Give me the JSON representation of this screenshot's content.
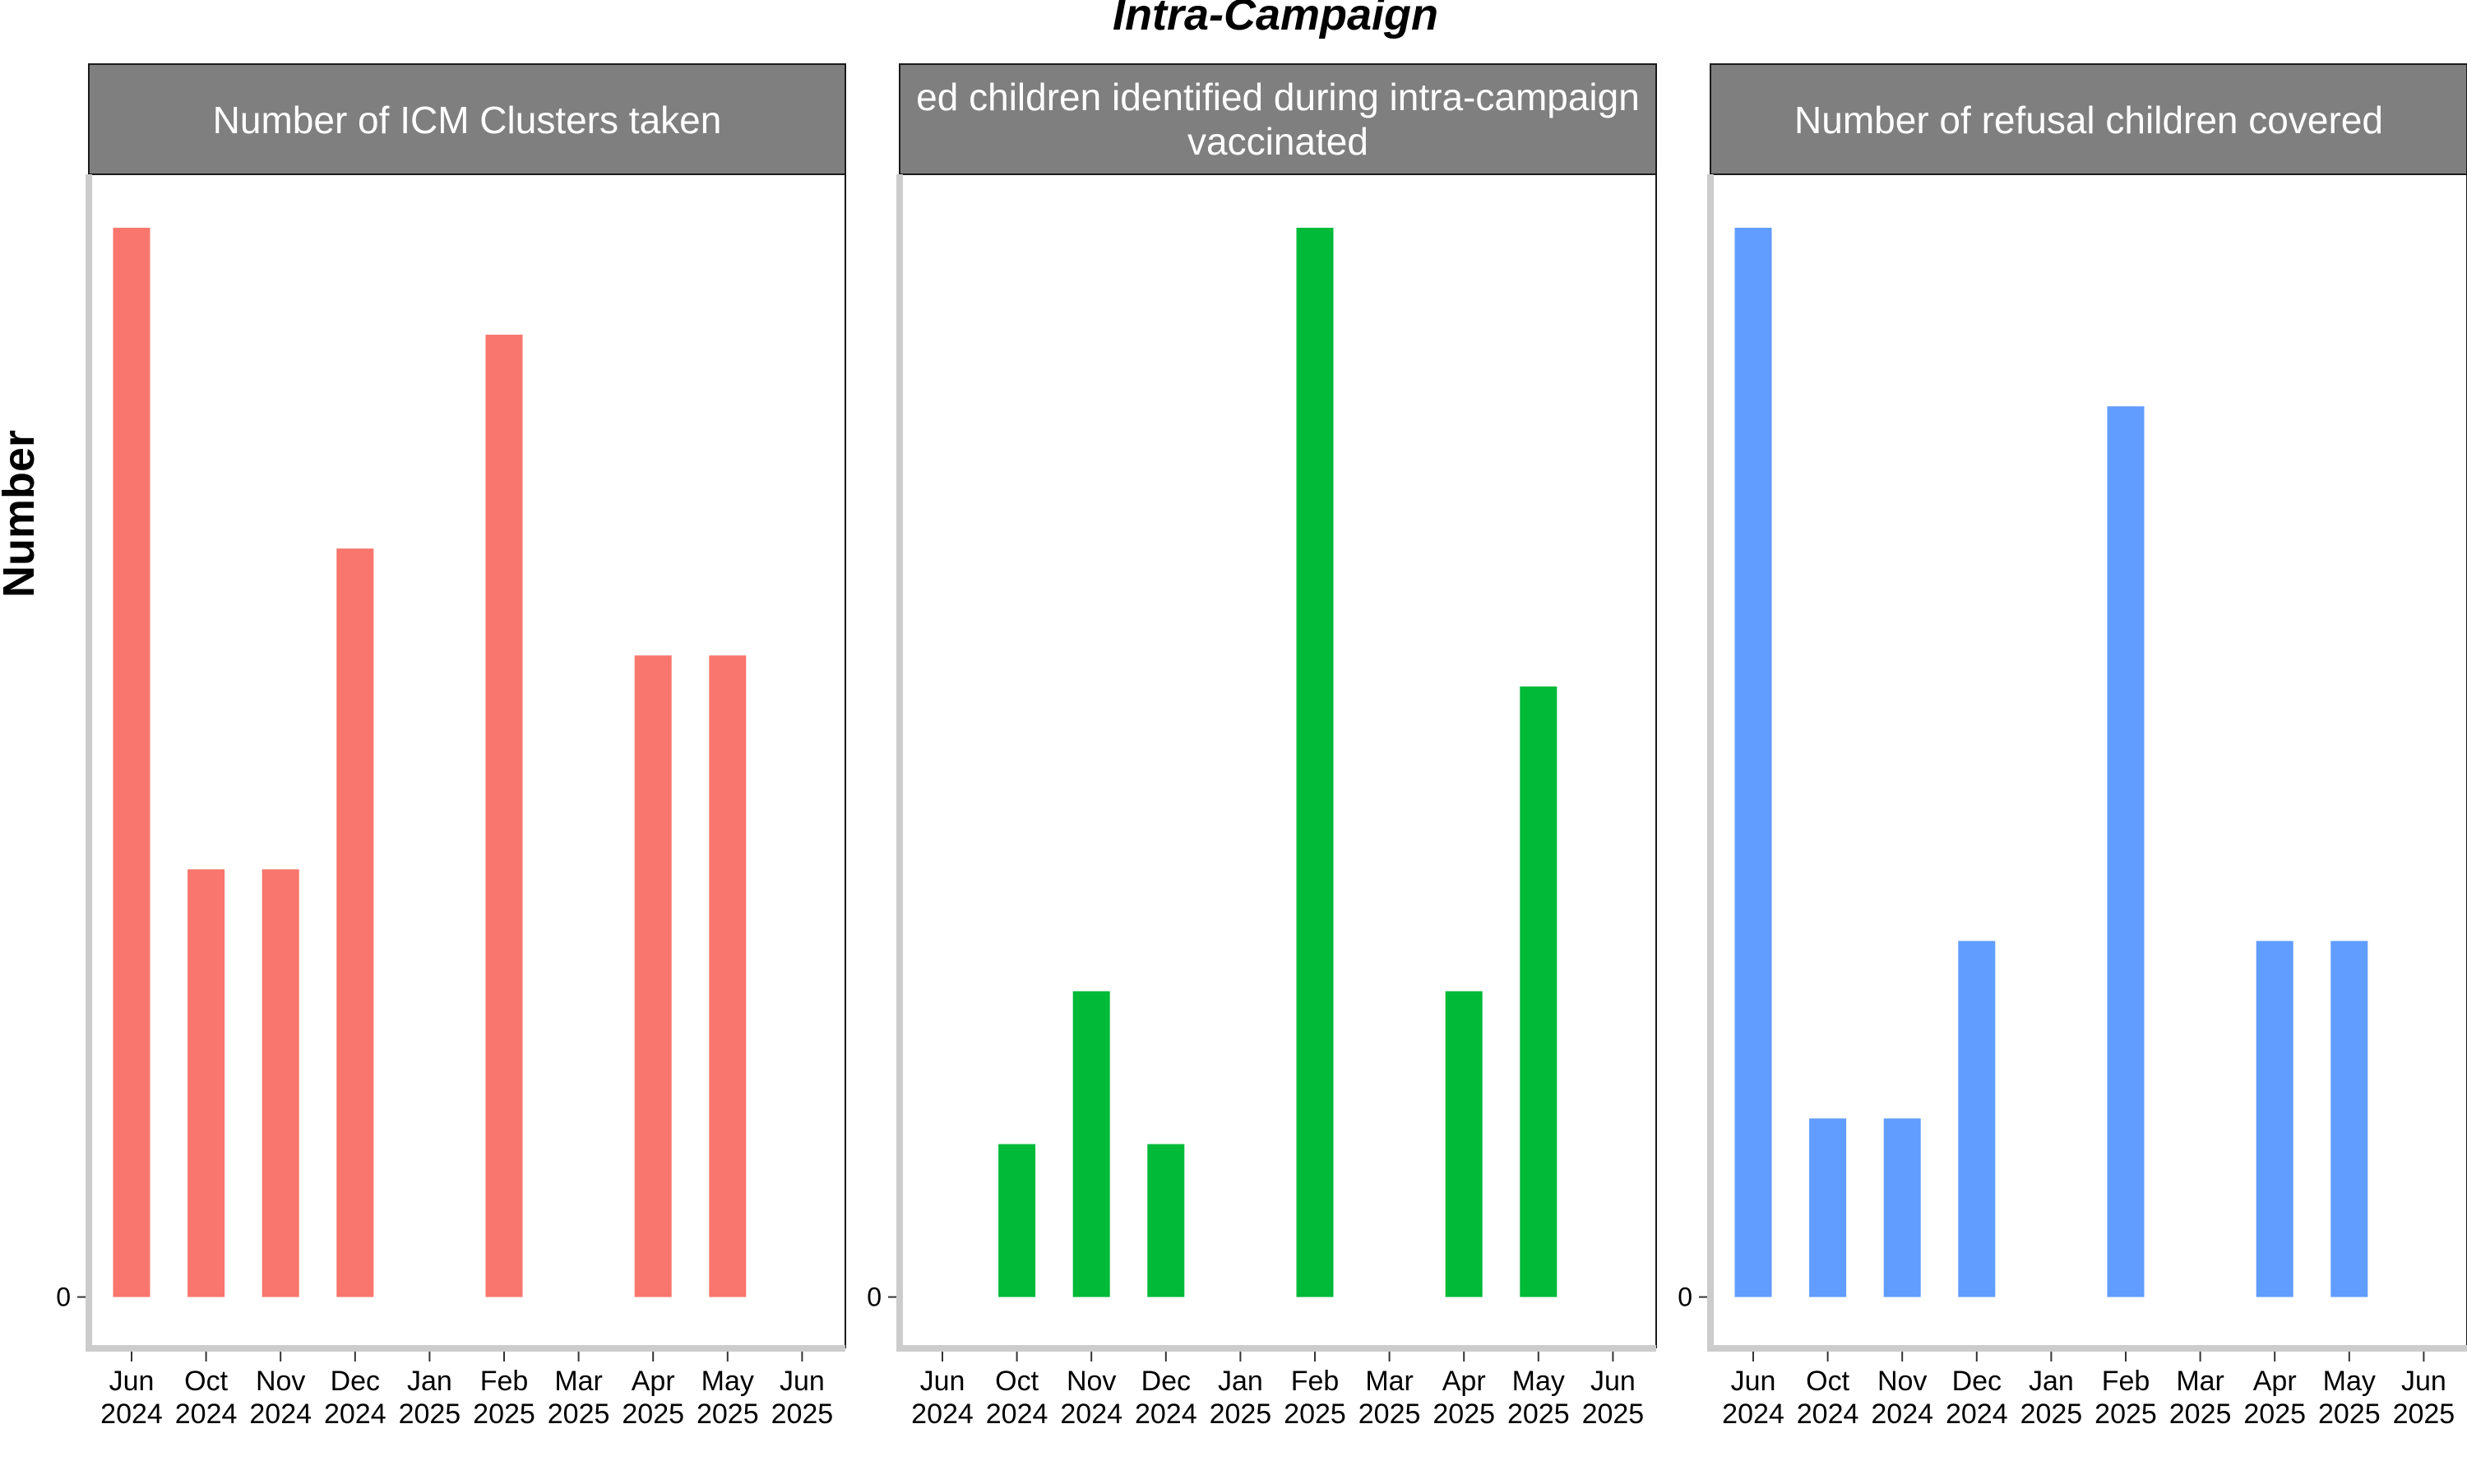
{
  "title": "Intra-Campaign",
  "ylabel": "Number",
  "colors": [
    "#F8766D",
    "#00BA38",
    "#619CFF"
  ],
  "chart_data": [
    {
      "type": "bar",
      "panel_title": "Number of ICM Clusters taken",
      "categories": [
        "Jun 2024",
        "Oct 2024",
        "Nov 2024",
        "Dec 2024",
        "Jan 2025",
        "Feb 2025",
        "Mar 2025",
        "Apr 2025",
        "May 2025",
        "Jun 2025"
      ],
      "tick_labels": [
        [
          "Jun",
          "2024"
        ],
        [
          "Oct",
          "2024"
        ],
        [
          "Nov",
          "2024"
        ],
        [
          "Dec",
          "2024"
        ],
        [
          "Jan",
          "2025"
        ],
        [
          "Feb",
          "2025"
        ],
        [
          "Mar",
          "2025"
        ],
        [
          "Apr",
          "2025"
        ],
        [
          "May",
          "2025"
        ],
        [
          "Jun",
          "2025"
        ]
      ],
      "values": [
        100,
        40,
        40,
        70,
        0,
        90,
        0,
        60,
        60,
        0
      ],
      "ylim": [
        -4.8,
        105
      ],
      "yticks": [
        0
      ]
    },
    {
      "type": "bar",
      "panel_title_lines": [
        "ed children identified during intra-campaign",
        "vaccinated"
      ],
      "categories": [
        "Jun 2024",
        "Oct 2024",
        "Nov 2024",
        "Dec 2024",
        "Jan 2025",
        "Feb 2025",
        "Mar 2025",
        "Apr 2025",
        "May 2025",
        "Jun 2025"
      ],
      "tick_labels": [
        [
          "Jun",
          "2024"
        ],
        [
          "Oct",
          "2024"
        ],
        [
          "Nov",
          "2024"
        ],
        [
          "Dec",
          "2024"
        ],
        [
          "Jan",
          "2025"
        ],
        [
          "Feb",
          "2025"
        ],
        [
          "Mar",
          "2025"
        ],
        [
          "Apr",
          "2025"
        ],
        [
          "May",
          "2025"
        ],
        [
          "Jun",
          "2025"
        ]
      ],
      "values": [
        0,
        14.3,
        28.6,
        14.3,
        0,
        100,
        0,
        28.6,
        57.1,
        0
      ],
      "ylim": [
        -4.8,
        105
      ],
      "yticks": [
        0
      ]
    },
    {
      "type": "bar",
      "panel_title": "Number of refusal children covered",
      "categories": [
        "Jun 2024",
        "Oct 2024",
        "Nov 2024",
        "Dec 2024",
        "Jan 2025",
        "Feb 2025",
        "Mar 2025",
        "Apr 2025",
        "May 2025",
        "Jun 2025"
      ],
      "tick_labels": [
        [
          "Jun",
          "2024"
        ],
        [
          "Oct",
          "2024"
        ],
        [
          "Nov",
          "2024"
        ],
        [
          "Dec",
          "2024"
        ],
        [
          "Jan",
          "2025"
        ],
        [
          "Feb",
          "2025"
        ],
        [
          "Mar",
          "2025"
        ],
        [
          "Apr",
          "2025"
        ],
        [
          "May",
          "2025"
        ],
        [
          "Jun",
          "2025"
        ]
      ],
      "values": [
        100,
        16.7,
        16.7,
        33.3,
        0,
        83.3,
        0,
        33.3,
        33.3,
        0
      ],
      "ylim": [
        -4.8,
        105
      ],
      "yticks": [
        0
      ]
    }
  ]
}
